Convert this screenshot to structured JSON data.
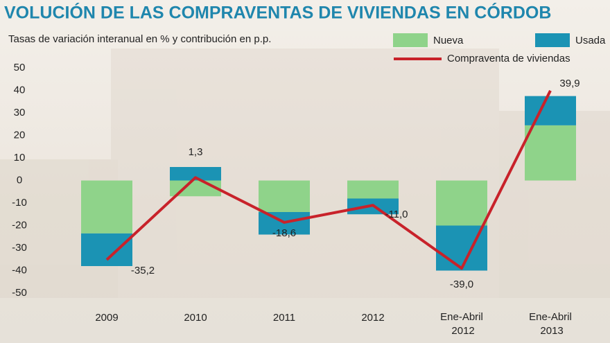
{
  "chart_data": {
    "type": "bar-line",
    "title": "VOLUCIÓN DE LAS COMPRAVENTAS DE VIVIENDAS EN CÓRDOB",
    "subtitle": "Tasas de variación interanual en % y contribución en p.p.",
    "categories": [
      "2009",
      "2010",
      "2011",
      "2012",
      "Ene-Abril 2012",
      "Ene-Abril 2013"
    ],
    "series": [
      {
        "name": "Nueva",
        "type": "bar",
        "color": "#8fd38a",
        "values": [
          -23.5,
          -7,
          -14,
          -8,
          -20,
          24.5
        ]
      },
      {
        "name": "Usada",
        "type": "bar",
        "color": "#1b93b4",
        "values": [
          -14.5,
          6,
          -10,
          -7,
          -20,
          13
        ]
      },
      {
        "name": "Compraventa de viviendas",
        "type": "line",
        "color": "#c8222a",
        "values": [
          -35.2,
          1.3,
          -18.6,
          -11.0,
          -39.0,
          39.9
        ],
        "value_labels": [
          "-35,2",
          "1,3",
          "-18,6",
          "-11,0",
          "-39,0",
          "39,9"
        ]
      }
    ],
    "ylim": [
      -50,
      50
    ],
    "yticks": [
      -50,
      -40,
      -30,
      -20,
      -10,
      0,
      10,
      20,
      30,
      40,
      50
    ]
  }
}
